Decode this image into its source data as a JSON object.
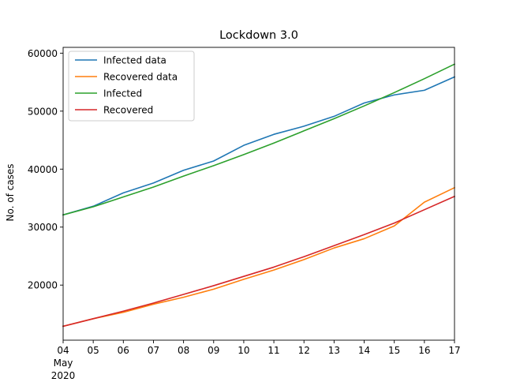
{
  "chart_data": {
    "type": "line",
    "title": "Lockdown 3.0",
    "xlabel": "",
    "ylabel": "No. of cases",
    "x": [
      "2020-05-04",
      "2020-05-05",
      "2020-05-06",
      "2020-05-07",
      "2020-05-08",
      "2020-05-09",
      "2020-05-10",
      "2020-05-11",
      "2020-05-12",
      "2020-05-13",
      "2020-05-14",
      "2020-05-15",
      "2020-05-16",
      "2020-05-17"
    ],
    "x_tick_labels": [
      "04",
      "05",
      "06",
      "07",
      "08",
      "09",
      "10",
      "11",
      "12",
      "13",
      "14",
      "15",
      "16",
      "17"
    ],
    "x_secondary_label": [
      "May",
      "2020"
    ],
    "xlim": [
      "2020-05-04",
      "2020-05-17"
    ],
    "ylim": [
      10500,
      61000
    ],
    "yticks": [
      20000,
      30000,
      40000,
      50000,
      60000
    ],
    "grid": false,
    "legend_position": "upper-left",
    "series": [
      {
        "name": "Infected data",
        "color": "#1f77b4",
        "values": [
          32100,
          33600,
          35900,
          37600,
          39800,
          41400,
          44100,
          46000,
          47400,
          49100,
          51400,
          52800,
          53600,
          55900
        ]
      },
      {
        "name": "Recovered data",
        "color": "#ff7f0e",
        "values": [
          12900,
          14200,
          15300,
          16700,
          17900,
          19300,
          21000,
          22600,
          24400,
          26400,
          28000,
          30200,
          34300,
          36800
        ]
      },
      {
        "name": "Infected",
        "color": "#2ca02c",
        "values": [
          32100,
          33500,
          35200,
          36900,
          38800,
          40600,
          42500,
          44500,
          46600,
          48700,
          50900,
          53200,
          55600,
          58100
        ]
      },
      {
        "name": "Recovered",
        "color": "#d62728",
        "values": [
          12900,
          14200,
          15500,
          16900,
          18400,
          19900,
          21500,
          23100,
          24900,
          26800,
          28700,
          30700,
          33000,
          35300
        ]
      }
    ]
  }
}
